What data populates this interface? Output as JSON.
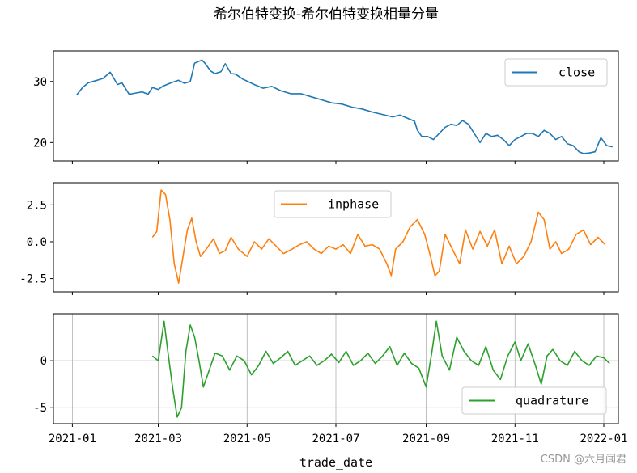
{
  "title": "希尔伯特变换-希尔伯特变换相量分量",
  "watermark": "CSDN @六月闻君",
  "colors": {
    "close": "#1f77b4",
    "inphase": "#ff7f0e",
    "quadrature": "#2ca02c",
    "grid": "#b0b0b0"
  },
  "chart_data": [
    {
      "type": "line",
      "panel": "close",
      "x_type": "date",
      "xlim": [
        "2020-12-19",
        "2022-01-11"
      ],
      "ylim": [
        17,
        35
      ],
      "yticks": [
        20,
        30
      ],
      "ytick_labels": [
        "20",
        "30"
      ],
      "grid": false,
      "legend": "upper-right",
      "series": [
        {
          "name": "close",
          "points": [
            [
              "2021-01-04",
              27.8
            ],
            [
              "2021-01-08",
              29.0
            ],
            [
              "2021-01-12",
              29.8
            ],
            [
              "2021-01-18",
              30.2
            ],
            [
              "2021-01-22",
              30.5
            ],
            [
              "2021-01-27",
              31.5
            ],
            [
              "2021-02-01",
              29.5
            ],
            [
              "2021-02-04",
              29.8
            ],
            [
              "2021-02-09",
              27.9
            ],
            [
              "2021-02-18",
              28.3
            ],
            [
              "2021-02-22",
              27.9
            ],
            [
              "2021-02-25",
              29.0
            ],
            [
              "2021-03-01",
              28.7
            ],
            [
              "2021-03-04",
              29.2
            ],
            [
              "2021-03-10",
              29.8
            ],
            [
              "2021-03-15",
              30.2
            ],
            [
              "2021-03-19",
              29.7
            ],
            [
              "2021-03-23",
              30.0
            ],
            [
              "2021-03-26",
              33.0
            ],
            [
              "2021-03-31",
              33.5
            ],
            [
              "2021-04-02",
              33.0
            ],
            [
              "2021-04-06",
              31.7
            ],
            [
              "2021-04-09",
              31.3
            ],
            [
              "2021-04-13",
              31.6
            ],
            [
              "2021-04-16",
              32.9
            ],
            [
              "2021-04-20",
              31.3
            ],
            [
              "2021-04-23",
              31.2
            ],
            [
              "2021-04-28",
              30.4
            ],
            [
              "2021-05-06",
              29.5
            ],
            [
              "2021-05-12",
              28.9
            ],
            [
              "2021-05-18",
              29.2
            ],
            [
              "2021-05-24",
              28.5
            ],
            [
              "2021-05-31",
              28.0
            ],
            [
              "2021-06-07",
              28.0
            ],
            [
              "2021-06-14",
              27.5
            ],
            [
              "2021-06-21",
              27.0
            ],
            [
              "2021-06-28",
              26.5
            ],
            [
              "2021-07-05",
              26.3
            ],
            [
              "2021-07-12",
              25.8
            ],
            [
              "2021-07-19",
              25.5
            ],
            [
              "2021-07-26",
              25.0
            ],
            [
              "2021-08-02",
              24.6
            ],
            [
              "2021-08-09",
              24.2
            ],
            [
              "2021-08-14",
              24.5
            ],
            [
              "2021-08-19",
              24.0
            ],
            [
              "2021-08-24",
              23.5
            ],
            [
              "2021-08-26",
              22.0
            ],
            [
              "2021-08-29",
              21.0
            ],
            [
              "2021-09-02",
              21.0
            ],
            [
              "2021-09-06",
              20.5
            ],
            [
              "2021-09-10",
              21.5
            ],
            [
              "2021-09-14",
              22.5
            ],
            [
              "2021-09-18",
              23.0
            ],
            [
              "2021-09-22",
              22.8
            ],
            [
              "2021-09-26",
              23.6
            ],
            [
              "2021-09-30",
              23.0
            ],
            [
              "2021-10-04",
              21.5
            ],
            [
              "2021-10-08",
              20.0
            ],
            [
              "2021-10-12",
              21.5
            ],
            [
              "2021-10-16",
              21.0
            ],
            [
              "2021-10-20",
              21.2
            ],
            [
              "2021-10-24",
              20.5
            ],
            [
              "2021-10-28",
              19.5
            ],
            [
              "2021-11-01",
              20.5
            ],
            [
              "2021-11-05",
              21.0
            ],
            [
              "2021-11-09",
              21.5
            ],
            [
              "2021-11-13",
              21.5
            ],
            [
              "2021-11-17",
              21.0
            ],
            [
              "2021-11-21",
              22.0
            ],
            [
              "2021-11-25",
              21.5
            ],
            [
              "2021-11-29",
              20.5
            ],
            [
              "2021-12-03",
              21.0
            ],
            [
              "2021-12-07",
              19.8
            ],
            [
              "2021-12-11",
              19.5
            ],
            [
              "2021-12-15",
              18.5
            ],
            [
              "2021-12-18",
              18.2
            ],
            [
              "2021-12-22",
              18.3
            ],
            [
              "2021-12-26",
              18.5
            ],
            [
              "2021-12-30",
              20.8
            ],
            [
              "2022-01-03",
              19.5
            ],
            [
              "2022-01-07",
              19.3
            ]
          ]
        }
      ]
    },
    {
      "type": "line",
      "panel": "inphase",
      "x_type": "date",
      "xlim": [
        "2020-12-19",
        "2022-01-11"
      ],
      "ylim": [
        -3.4,
        4.0
      ],
      "yticks": [
        -2.5,
        0.0,
        2.5
      ],
      "ytick_labels": [
        "-2.5",
        "0.0",
        "2.5"
      ],
      "grid": false,
      "legend": "upper-center",
      "series": [
        {
          "name": "inphase",
          "points": [
            [
              "2021-02-25",
              0.3
            ],
            [
              "2021-02-28",
              0.7
            ],
            [
              "2021-03-03",
              3.5
            ],
            [
              "2021-03-06",
              3.2
            ],
            [
              "2021-03-09",
              1.5
            ],
            [
              "2021-03-12",
              -1.5
            ],
            [
              "2021-03-15",
              -2.8
            ],
            [
              "2021-03-18",
              -1.0
            ],
            [
              "2021-03-21",
              0.8
            ],
            [
              "2021-03-24",
              1.6
            ],
            [
              "2021-03-27",
              0.0
            ],
            [
              "2021-03-30",
              -1.0
            ],
            [
              "2021-04-03",
              -0.5
            ],
            [
              "2021-04-08",
              0.2
            ],
            [
              "2021-04-12",
              -0.8
            ],
            [
              "2021-04-16",
              -0.6
            ],
            [
              "2021-04-20",
              0.3
            ],
            [
              "2021-04-25",
              -0.5
            ],
            [
              "2021-05-01",
              -1.0
            ],
            [
              "2021-05-06",
              0.0
            ],
            [
              "2021-05-11",
              -0.5
            ],
            [
              "2021-05-16",
              0.2
            ],
            [
              "2021-05-21",
              -0.3
            ],
            [
              "2021-05-26",
              -0.8
            ],
            [
              "2021-06-01",
              -0.5
            ],
            [
              "2021-06-06",
              -0.2
            ],
            [
              "2021-06-11",
              0.0
            ],
            [
              "2021-06-16",
              -0.5
            ],
            [
              "2021-06-21",
              -0.8
            ],
            [
              "2021-06-26",
              -0.3
            ],
            [
              "2021-07-01",
              -0.5
            ],
            [
              "2021-07-06",
              -0.2
            ],
            [
              "2021-07-11",
              -0.8
            ],
            [
              "2021-07-16",
              0.5
            ],
            [
              "2021-07-21",
              -0.3
            ],
            [
              "2021-07-26",
              -0.2
            ],
            [
              "2021-07-31",
              -0.5
            ],
            [
              "2021-08-05",
              -1.5
            ],
            [
              "2021-08-08",
              -2.3
            ],
            [
              "2021-08-11",
              -0.5
            ],
            [
              "2021-08-16",
              0.0
            ],
            [
              "2021-08-21",
              1.0
            ],
            [
              "2021-08-26",
              1.5
            ],
            [
              "2021-08-31",
              0.5
            ],
            [
              "2021-09-04",
              -1.0
            ],
            [
              "2021-09-07",
              -2.3
            ],
            [
              "2021-09-10",
              -2.0
            ],
            [
              "2021-09-14",
              0.5
            ],
            [
              "2021-09-19",
              -0.5
            ],
            [
              "2021-09-24",
              -1.5
            ],
            [
              "2021-09-28",
              0.8
            ],
            [
              "2021-10-03",
              -0.5
            ],
            [
              "2021-10-08",
              0.7
            ],
            [
              "2021-10-13",
              -0.3
            ],
            [
              "2021-10-18",
              0.8
            ],
            [
              "2021-10-23",
              -1.5
            ],
            [
              "2021-10-28",
              -0.3
            ],
            [
              "2021-11-02",
              -1.5
            ],
            [
              "2021-11-07",
              -1.0
            ],
            [
              "2021-11-12",
              0.0
            ],
            [
              "2021-11-17",
              2.0
            ],
            [
              "2021-11-21",
              1.5
            ],
            [
              "2021-11-25",
              -0.5
            ],
            [
              "2021-11-29",
              0.0
            ],
            [
              "2021-12-03",
              -0.8
            ],
            [
              "2021-12-08",
              -0.5
            ],
            [
              "2021-12-13",
              0.5
            ],
            [
              "2021-12-18",
              0.8
            ],
            [
              "2021-12-23",
              -0.2
            ],
            [
              "2021-12-28",
              0.3
            ],
            [
              "2022-01-02",
              -0.2
            ]
          ]
        }
      ]
    },
    {
      "type": "line",
      "panel": "quadrature",
      "x_type": "date",
      "x_label": "trade_date",
      "xlim": [
        "2020-12-19",
        "2022-01-11"
      ],
      "ylim": [
        -6.7,
        5.0
      ],
      "yticks": [
        -5,
        0
      ],
      "ytick_labels": [
        "-5",
        "0"
      ],
      "grid": true,
      "legend": "lower-right",
      "xticks": [
        "2021-01-01",
        "2021-03-01",
        "2021-05-01",
        "2021-07-01",
        "2021-09-01",
        "2021-11-01",
        "2022-01-01"
      ],
      "xtick_labels": [
        "2021-01",
        "2021-03",
        "2021-05",
        "2021-07",
        "2021-09",
        "2021-11",
        "2022-01"
      ],
      "series": [
        {
          "name": "quadrature",
          "points": [
            [
              "2021-02-25",
              0.5
            ],
            [
              "2021-03-01",
              0.0
            ],
            [
              "2021-03-05",
              4.2
            ],
            [
              "2021-03-08",
              0.5
            ],
            [
              "2021-03-11",
              -3.0
            ],
            [
              "2021-03-14",
              -6.0
            ],
            [
              "2021-03-17",
              -5.0
            ],
            [
              "2021-03-20",
              1.0
            ],
            [
              "2021-03-23",
              3.8
            ],
            [
              "2021-03-26",
              2.5
            ],
            [
              "2021-03-29",
              0.0
            ],
            [
              "2021-04-01",
              -2.8
            ],
            [
              "2021-04-05",
              -1.0
            ],
            [
              "2021-04-09",
              0.8
            ],
            [
              "2021-04-14",
              0.5
            ],
            [
              "2021-04-19",
              -1.0
            ],
            [
              "2021-04-24",
              0.5
            ],
            [
              "2021-04-29",
              0.0
            ],
            [
              "2021-05-04",
              -1.5
            ],
            [
              "2021-05-09",
              -0.5
            ],
            [
              "2021-05-14",
              1.0
            ],
            [
              "2021-05-19",
              -0.3
            ],
            [
              "2021-05-24",
              0.3
            ],
            [
              "2021-05-29",
              1.0
            ],
            [
              "2021-06-03",
              -0.5
            ],
            [
              "2021-06-08",
              0.0
            ],
            [
              "2021-06-13",
              0.5
            ],
            [
              "2021-06-18",
              -0.5
            ],
            [
              "2021-06-23",
              0.0
            ],
            [
              "2021-06-28",
              0.7
            ],
            [
              "2021-07-03",
              -0.2
            ],
            [
              "2021-07-08",
              1.0
            ],
            [
              "2021-07-13",
              -0.5
            ],
            [
              "2021-07-18",
              0.0
            ],
            [
              "2021-07-23",
              0.8
            ],
            [
              "2021-07-28",
              -0.3
            ],
            [
              "2021-08-02",
              0.5
            ],
            [
              "2021-08-07",
              1.5
            ],
            [
              "2021-08-12",
              -0.5
            ],
            [
              "2021-08-17",
              0.8
            ],
            [
              "2021-08-22",
              -0.3
            ],
            [
              "2021-08-27",
              -0.8
            ],
            [
              "2021-09-01",
              -2.8
            ],
            [
              "2021-09-05",
              1.0
            ],
            [
              "2021-09-08",
              4.2
            ],
            [
              "2021-09-12",
              0.5
            ],
            [
              "2021-09-17",
              -1.0
            ],
            [
              "2021-09-22",
              2.5
            ],
            [
              "2021-09-27",
              1.0
            ],
            [
              "2021-10-02",
              0.0
            ],
            [
              "2021-10-07",
              -0.5
            ],
            [
              "2021-10-12",
              1.5
            ],
            [
              "2021-10-17",
              -1.0
            ],
            [
              "2021-10-22",
              -2.0
            ],
            [
              "2021-10-27",
              0.5
            ],
            [
              "2021-11-01",
              2.0
            ],
            [
              "2021-11-05",
              0.0
            ],
            [
              "2021-11-10",
              1.8
            ],
            [
              "2021-11-15",
              -0.5
            ],
            [
              "2021-11-19",
              -2.5
            ],
            [
              "2021-11-23",
              0.5
            ],
            [
              "2021-11-27",
              1.2
            ],
            [
              "2021-12-02",
              0.0
            ],
            [
              "2021-12-07",
              -0.5
            ],
            [
              "2021-12-12",
              1.0
            ],
            [
              "2021-12-17",
              0.0
            ],
            [
              "2021-12-22",
              -0.5
            ],
            [
              "2021-12-27",
              0.5
            ],
            [
              "2022-01-01",
              0.3
            ],
            [
              "2022-01-05",
              -0.3
            ]
          ]
        }
      ]
    }
  ]
}
